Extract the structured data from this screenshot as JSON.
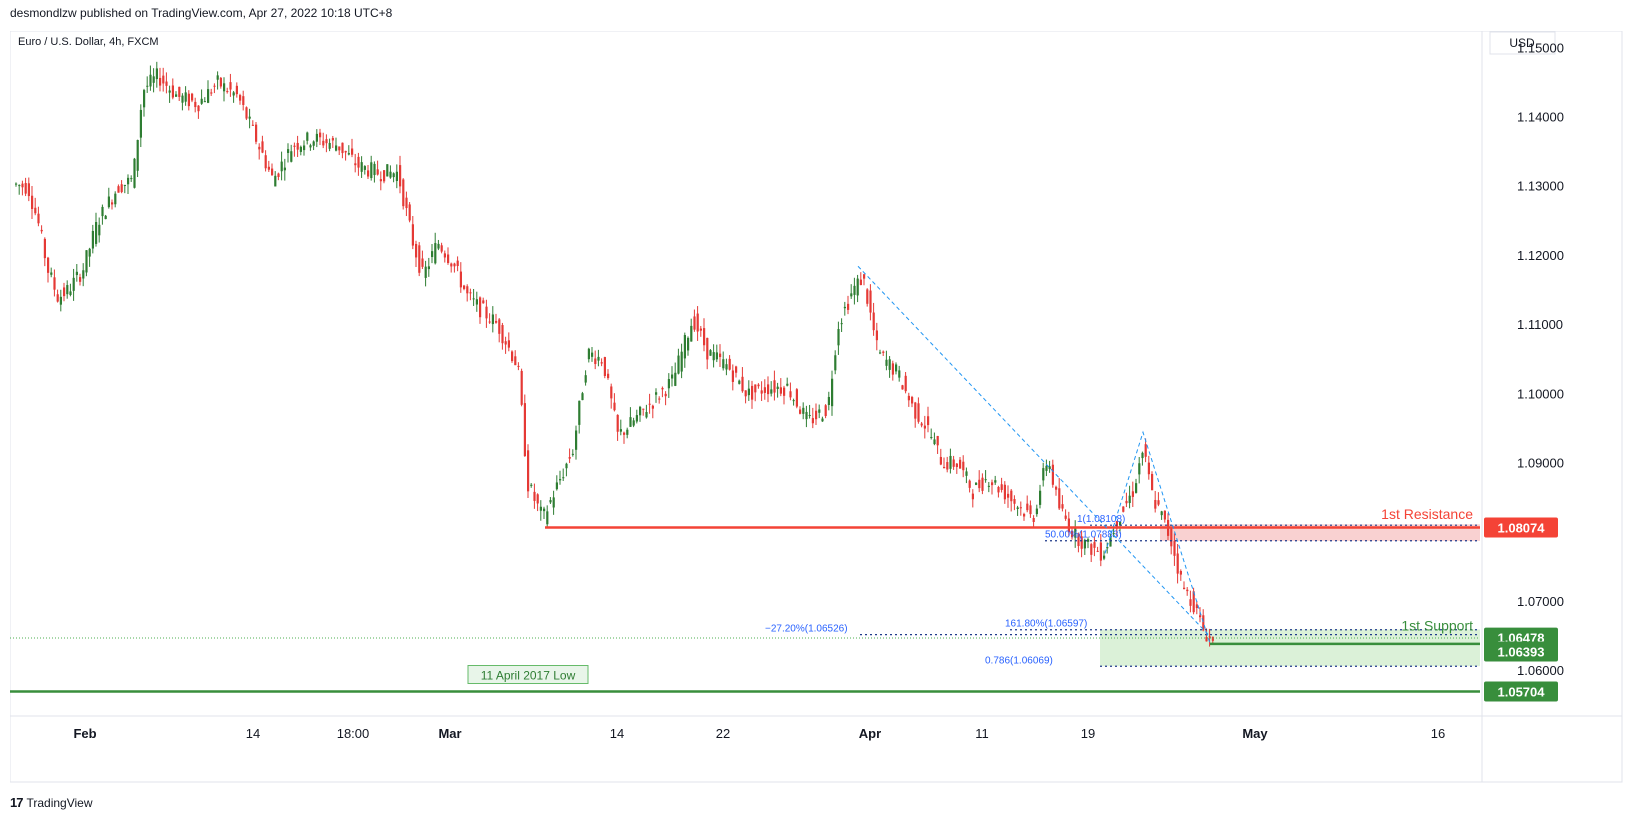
{
  "header": {
    "published_text": "desmondlzw published on TradingView.com, Apr 27, 2022 10:18 UTC+8"
  },
  "footer": {
    "brand_text": "TradingView"
  },
  "chart_data": {
    "type": "candlestick",
    "title": "Euro / U.S. Dollar, 4h, FXCM",
    "currency_label": "USD",
    "y_ticks": [
      "1.15000",
      "1.14000",
      "1.13000",
      "1.12000",
      "1.11000",
      "1.10000",
      "1.09000",
      "1.07000",
      "1.06000"
    ],
    "x_ticks": [
      "Feb",
      "14",
      "18:00",
      "Mar",
      "14",
      "22",
      "Apr",
      "11",
      "19",
      "May",
      "16"
    ],
    "bold_x_ticks": [
      "Feb",
      "Mar",
      "Apr",
      "May"
    ],
    "ylim": [
      1.0535,
      1.1525
    ],
    "colors": {
      "up": "#26a69a",
      "down": "#ef5350",
      "candle_up": "#2e7d32",
      "candle_down": "#e53935",
      "resistance": "#f44336",
      "support": "#388e3c",
      "fib": "#2962ff"
    },
    "price_path": [
      [
        0,
        1.1305
      ],
      [
        20,
        1.13
      ],
      [
        30,
        1.125
      ],
      [
        40,
        1.118
      ],
      [
        50,
        1.114
      ],
      [
        60,
        1.115
      ],
      [
        75,
        1.118
      ],
      [
        90,
        1.125
      ],
      [
        110,
        1.13
      ],
      [
        125,
        1.131
      ],
      [
        135,
        1.144
      ],
      [
        150,
        1.146
      ],
      [
        170,
        1.143
      ],
      [
        190,
        1.142
      ],
      [
        210,
        1.145
      ],
      [
        230,
        1.143
      ],
      [
        245,
        1.138
      ],
      [
        265,
        1.131
      ],
      [
        285,
        1.136
      ],
      [
        305,
        1.137
      ],
      [
        330,
        1.136
      ],
      [
        350,
        1.133
      ],
      [
        370,
        1.132
      ],
      [
        390,
        1.132
      ],
      [
        405,
        1.122
      ],
      [
        415,
        1.117
      ],
      [
        430,
        1.122
      ],
      [
        445,
        1.119
      ],
      [
        460,
        1.114
      ],
      [
        475,
        1.112
      ],
      [
        490,
        1.11
      ],
      [
        510,
        1.104
      ],
      [
        520,
        1.087
      ],
      [
        535,
        1.082
      ],
      [
        550,
        1.087
      ],
      [
        565,
        1.092
      ],
      [
        580,
        1.106
      ],
      [
        595,
        1.105
      ],
      [
        610,
        1.094
      ],
      [
        625,
        1.096
      ],
      [
        645,
        1.099
      ],
      [
        665,
        1.102
      ],
      [
        685,
        1.111
      ],
      [
        700,
        1.106
      ],
      [
        720,
        1.104
      ],
      [
        740,
        1.1
      ],
      [
        760,
        1.101
      ],
      [
        780,
        1.101
      ],
      [
        800,
        1.096
      ],
      [
        820,
        1.098
      ],
      [
        830,
        1.11
      ],
      [
        845,
        1.115
      ],
      [
        855,
        1.117
      ],
      [
        870,
        1.106
      ],
      [
        890,
        1.103
      ],
      [
        905,
        1.098
      ],
      [
        920,
        1.095
      ],
      [
        935,
        1.09
      ],
      [
        950,
        1.09
      ],
      [
        965,
        1.086
      ],
      [
        980,
        1.088
      ],
      [
        995,
        1.086
      ],
      [
        1010,
        1.084
      ],
      [
        1025,
        1.082
      ],
      [
        1040,
        1.091
      ],
      [
        1050,
        1.084
      ],
      [
        1065,
        1.08
      ],
      [
        1080,
        1.078
      ],
      [
        1095,
        1.077
      ],
      [
        1110,
        1.082
      ],
      [
        1125,
        1.086
      ],
      [
        1135,
        1.092
      ],
      [
        1145,
        1.085
      ],
      [
        1155,
        1.082
      ],
      [
        1165,
        1.078
      ],
      [
        1175,
        1.072
      ],
      [
        1185,
        1.07
      ],
      [
        1195,
        1.066
      ],
      [
        1205,
        1.0642
      ]
    ],
    "candle_x_range": [
      5,
      1205
    ],
    "levels": [
      {
        "name": "1st Resistance",
        "value": 1.08074,
        "value_label": "1.08074",
        "from_x": 535,
        "color": "#f44336"
      },
      {
        "name": "1st Support",
        "value": 1.06393,
        "value_label": "1.06393",
        "from_x": 1200,
        "color": "#388e3c"
      },
      {
        "name": "11 April 2017 Low",
        "value": 1.05704,
        "value_label": "1.05704",
        "from_x": 0,
        "color": "#388e3c"
      }
    ],
    "last_price_label": "1.06478",
    "last_price": 1.06478,
    "resistance_zone": [
      1.0788,
      1.0812
    ],
    "support_zone": [
      1.0607,
      1.066
    ],
    "fib_labels": [
      {
        "text": "1(1.08108)",
        "value": 1.08108
      },
      {
        "text": "50.00%(1.07883)",
        "value": 1.07883
      },
      {
        "text": "−27.20%(1.06526)",
        "value": 1.06526
      },
      {
        "text": "161.80%(1.06597)",
        "value": 1.06597
      },
      {
        "text": "0.786(1.06069)",
        "value": 1.06069
      }
    ],
    "annotations": {
      "resistance": "1st Resistance",
      "support": "1st Support",
      "april_low": "11 April 2017 Low"
    },
    "pattern_lines": [
      [
        [
          848,
          1.1185
        ],
        [
          1200,
          1.065
        ]
      ],
      [
        [
          1095,
          1.077
        ],
        [
          1133,
          1.0945
        ],
        [
          1200,
          1.064
        ]
      ]
    ]
  }
}
